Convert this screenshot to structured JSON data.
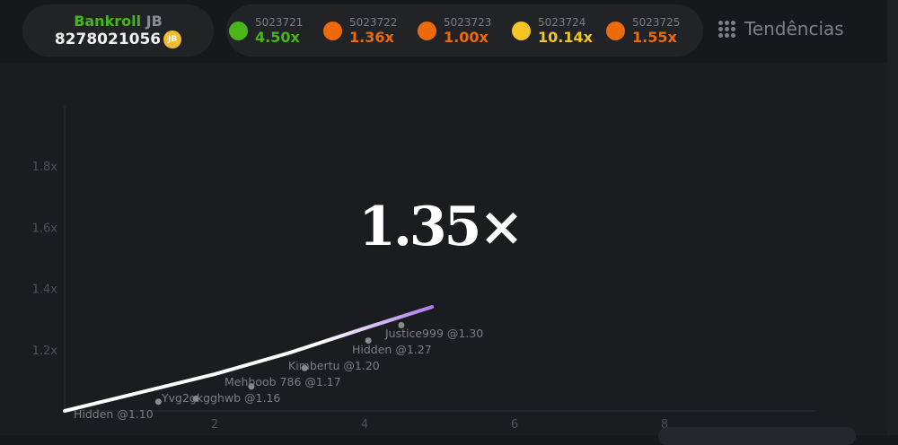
{
  "bankroll": {
    "label": "Bankroll",
    "currency": "JB",
    "value": "8278021056",
    "coin_label": "JB"
  },
  "history": [
    {
      "id": "5023721",
      "multiplier": "4.50x",
      "color": "#48b51a"
    },
    {
      "id": "5023722",
      "multiplier": "1.36x",
      "color": "#ec6a0a"
    },
    {
      "id": "5023723",
      "multiplier": "1.00x",
      "color": "#ec6a0a"
    },
    {
      "id": "5023724",
      "multiplier": "10.14x",
      "color": "#f5c527"
    },
    {
      "id": "5023725",
      "multiplier": "1.55x",
      "color": "#ec6a0a"
    }
  ],
  "trends": {
    "label": "Tendências",
    "icon": "dots-grid-icon"
  },
  "current_multiplier": "1.35×",
  "chart_data": {
    "type": "line",
    "xlim": [
      0,
      10
    ],
    "ylim": [
      1.0,
      1.95
    ],
    "x_ticks": [
      "2",
      "4",
      "6",
      "8"
    ],
    "x_tick_values": [
      2,
      4,
      6,
      8
    ],
    "y_ticks": [
      "1.2x",
      "1.4x",
      "1.6x",
      "1.8x"
    ],
    "y_tick_values": [
      1.2,
      1.4,
      1.6,
      1.8
    ],
    "curve": [
      [
        0,
        1.0
      ],
      [
        1,
        1.06
      ],
      [
        2,
        1.12
      ],
      [
        3,
        1.19
      ],
      [
        4,
        1.27
      ],
      [
        4.9,
        1.34
      ]
    ],
    "cashouts": [
      {
        "label": "Justice999 @1.30",
        "x": 4.49,
        "y": 1.28
      },
      {
        "label": "Hidden @1.27",
        "x": 4.05,
        "y": 1.23
      },
      {
        "label": "Kimbertu @1.20",
        "x": 3.2,
        "y": 1.14
      },
      {
        "label": "Mehboob 786 @1.17",
        "x": 2.49,
        "y": 1.08
      },
      {
        "label": "Yvg2gkgghwb @1.16",
        "x": 1.75,
        "y": 1.04
      },
      {
        "label": "Hidden @1.10",
        "x": 1.25,
        "y": 1.03
      }
    ]
  }
}
